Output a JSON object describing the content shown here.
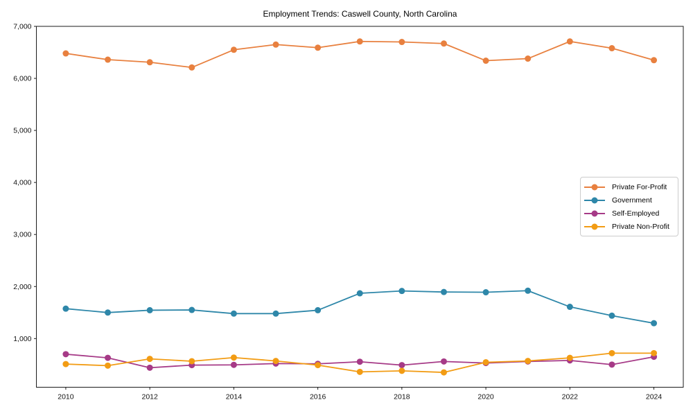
{
  "figure": {
    "background": "#ffffff"
  },
  "chart_data": {
    "type": "line",
    "title": "Employment Trends: Caswell County, North Carolina",
    "xlabel": "",
    "ylabel": "",
    "x": [
      2010,
      2011,
      2012,
      2013,
      2014,
      2015,
      2016,
      2017,
      2018,
      2019,
      2020,
      2021,
      2022,
      2023,
      2024
    ],
    "series": [
      {
        "name": "Private For-Profit",
        "color": "#e8803f",
        "values": [
          6480,
          6360,
          6310,
          6210,
          6550,
          6650,
          6590,
          6710,
          6700,
          6670,
          6340,
          6380,
          6710,
          6580,
          6350
        ]
      },
      {
        "name": "Government",
        "color": "#2e87a9",
        "values": [
          1575,
          1500,
          1545,
          1550,
          1480,
          1480,
          1545,
          1870,
          1915,
          1895,
          1890,
          1920,
          1610,
          1440,
          1295
        ]
      },
      {
        "name": "Self-Employed",
        "color": "#a63a87",
        "values": [
          700,
          630,
          440,
          490,
          495,
          520,
          515,
          555,
          490,
          560,
          530,
          560,
          580,
          500,
          650
        ]
      },
      {
        "name": "Private Non-Profit",
        "color": "#f29c14",
        "values": [
          510,
          480,
          610,
          565,
          635,
          570,
          490,
          360,
          380,
          350,
          545,
          570,
          630,
          720,
          720
        ]
      }
    ],
    "xticks": [
      2010,
      2012,
      2014,
      2016,
      2018,
      2020,
      2022,
      2024
    ],
    "yticks": [
      1000,
      2000,
      3000,
      4000,
      5000,
      6000,
      7000
    ],
    "ytick_labels": [
      "1,000",
      "2,000",
      "3,000",
      "4,000",
      "5,000",
      "6,000",
      "7,000"
    ],
    "xlim": [
      2009.3,
      2024.7
    ],
    "ylim": [
      65,
      7000
    ],
    "grid": false,
    "marker": "circle",
    "legend_position": "center right",
    "axis_color": "#1a1a1a",
    "tick_label_color": "#111111"
  }
}
